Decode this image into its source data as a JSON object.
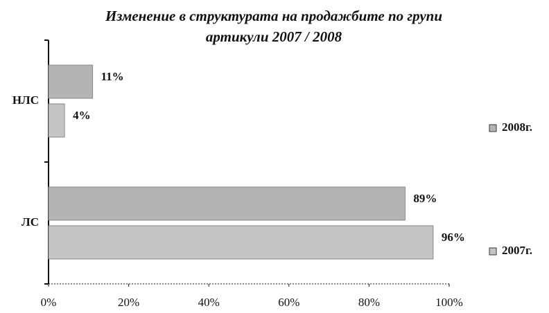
{
  "chart_data": {
    "type": "hbar",
    "title": [
      "Изменение в структурата на продажбите по групи",
      "артикули 2007 / 2008"
    ],
    "categories": [
      "НЛС",
      "ЛС"
    ],
    "series": [
      {
        "name": "2008г.",
        "color": "#b4b4b4",
        "values": [
          11,
          89
        ],
        "value_labels": [
          "11%",
          "89%"
        ]
      },
      {
        "name": "2007г.",
        "color": "#c4c4c4",
        "values": [
          4,
          96
        ],
        "value_labels": [
          "4%",
          "96%"
        ]
      }
    ],
    "xlim": [
      0,
      100
    ],
    "xticks": [
      {
        "value": 0,
        "label": "0%"
      },
      {
        "value": 20,
        "label": "20%"
      },
      {
        "value": 40,
        "label": "40%"
      },
      {
        "value": 60,
        "label": "60%"
      },
      {
        "value": 80,
        "label": "80%"
      },
      {
        "value": 100,
        "label": "100%"
      }
    ],
    "legend": "right"
  }
}
